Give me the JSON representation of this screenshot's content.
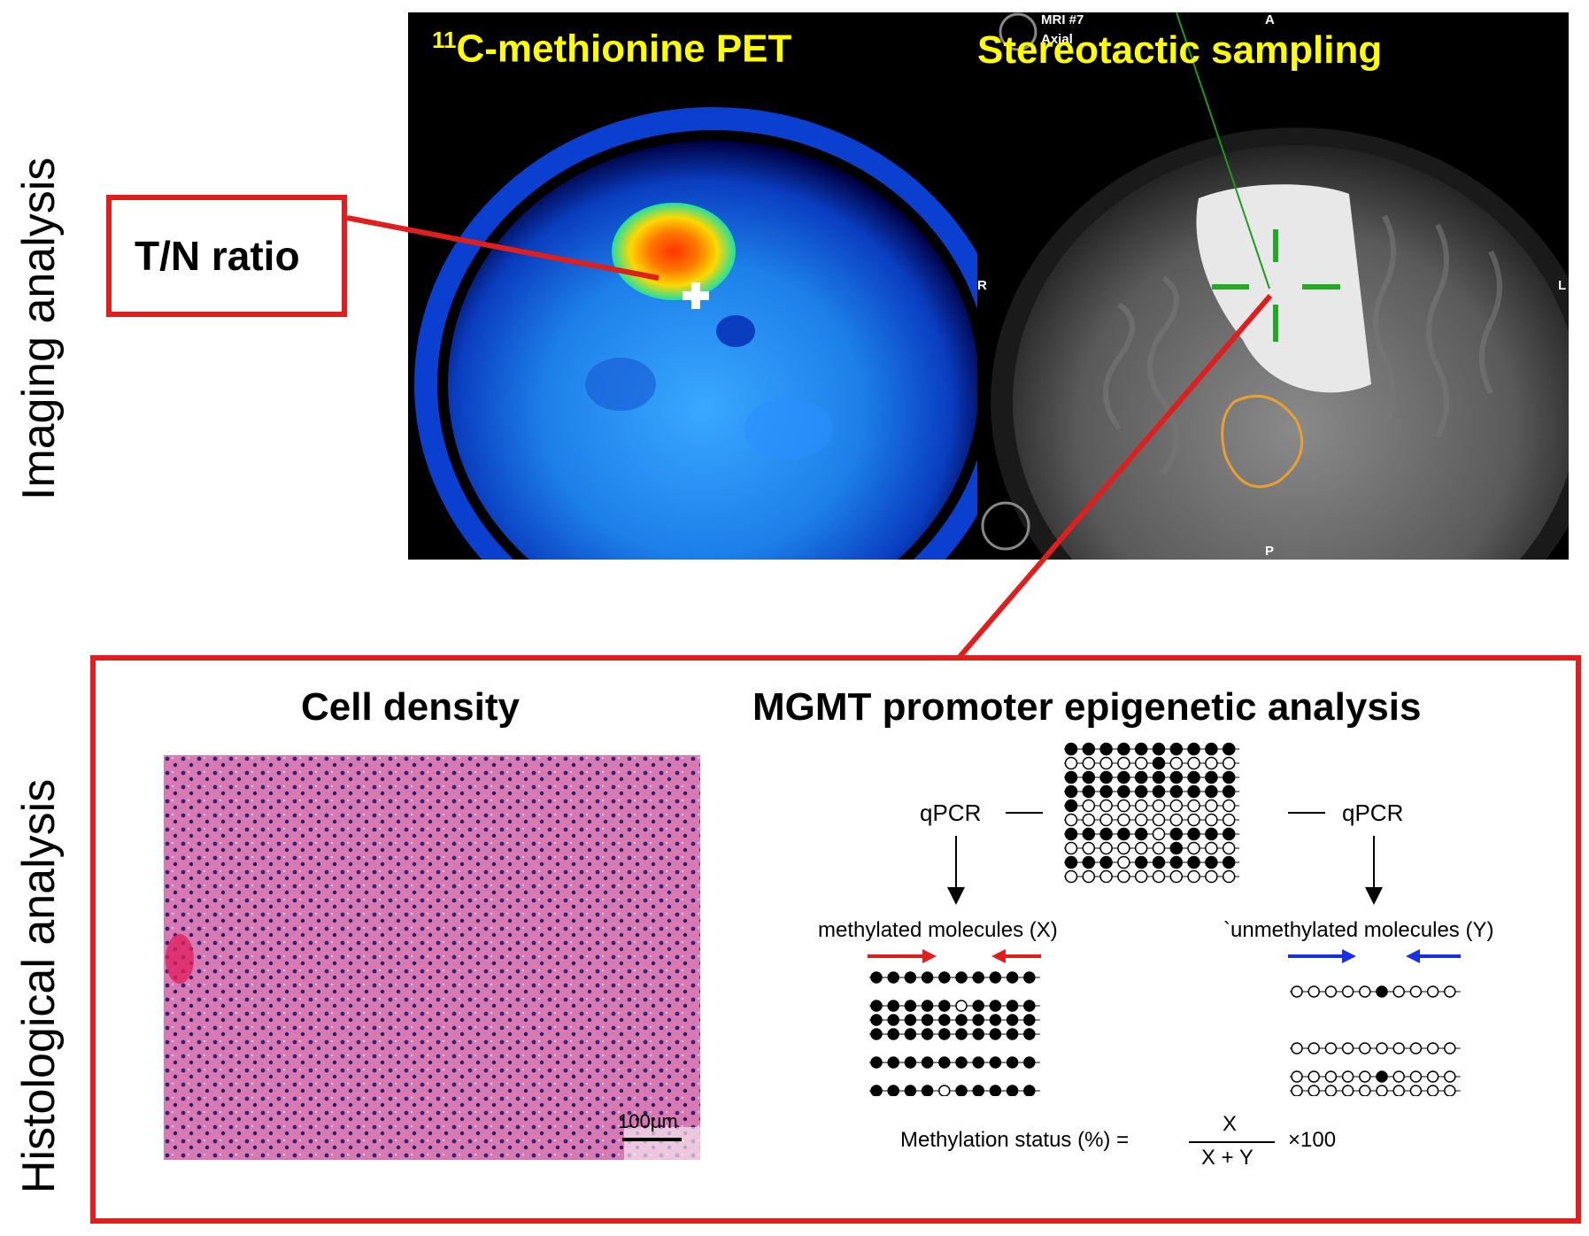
{
  "side_labels": {
    "imaging": "Imaging analysis",
    "histological": "Histological analysis"
  },
  "tn_box": {
    "label": "T/N ratio"
  },
  "pet_panel": {
    "superscript": "11",
    "title_rest": "C-methionine PET"
  },
  "mri_panel": {
    "title": "Stereotactic sampling",
    "annotation_top": "MRI #7",
    "annotation_axial": "Axial",
    "orient_anterior": "A",
    "orient_posterior": "P",
    "orient_right": "R",
    "orient_left": "L"
  },
  "histology": {
    "cell_density_title": "Cell density",
    "scale_bar_label": "100μm",
    "mgmt_title": "MGMT promoter epigenetic analysis",
    "qpcr_left": "qPCR",
    "qpcr_right": "qPCR",
    "methylated_label": "methylated molecules (X)",
    "unmethylated_label": "`unmethylated molecules (Y)",
    "formula_lhs": "Methylation status (%) =",
    "formula_numerator": "X",
    "formula_denominator": "X + Y",
    "formula_multiplier": "×100"
  },
  "colors": {
    "accent_red": "#e01e1e",
    "title_yellow": "#ffff00",
    "arrow_blue": "#1a2fe0",
    "crosshair_green": "#22aa22"
  }
}
